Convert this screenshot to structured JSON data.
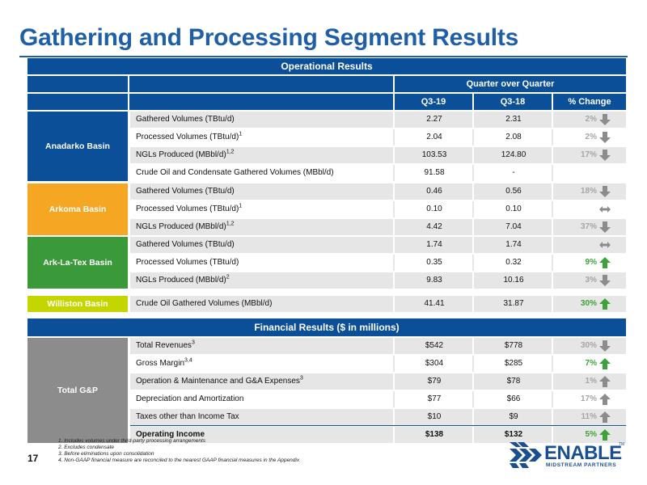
{
  "page": {
    "title": "Gathering and Processing Segment Results",
    "page_number": "17"
  },
  "operational": {
    "header": "Operational Results",
    "period_header": "Quarter over Quarter",
    "columns": [
      "Q3-19",
      "Q3-18",
      "% Change"
    ],
    "groups": [
      {
        "name": "Anadarko Basin",
        "color": "#0a4f98",
        "rows": [
          {
            "label": "Gathered Volumes (TBtu/d)",
            "sup": "",
            "q3_19": "2.27",
            "q3_18": "2.31",
            "change": "2%",
            "trend": "down"
          },
          {
            "label": "Processed Volumes (TBtu/d)",
            "sup": "1",
            "q3_19": "2.04",
            "q3_18": "2.08",
            "change": "2%",
            "trend": "down"
          },
          {
            "label": "NGLs Produced (MBbl/d)",
            "sup": "1,2",
            "q3_19": "103.53",
            "q3_18": "124.80",
            "change": "17%",
            "trend": "down"
          },
          {
            "label": "Crude Oil and Condensate Gathered Volumes (MBbl/d)",
            "sup": "",
            "q3_19": "91.58",
            "q3_18": "-",
            "change": "",
            "trend": "none"
          }
        ]
      },
      {
        "name": "Arkoma Basin",
        "color": "#f5a623",
        "rows": [
          {
            "label": "Gathered Volumes (TBtu/d)",
            "sup": "",
            "q3_19": "0.46",
            "q3_18": "0.56",
            "change": "18%",
            "trend": "down"
          },
          {
            "label": "Processed Volumes (TBtu/d)",
            "sup": "1",
            "q3_19": "0.10",
            "q3_18": "0.10",
            "change": "",
            "trend": "flat"
          },
          {
            "label": "NGLs Produced (MBbl/d)",
            "sup": "1,2",
            "q3_19": "4.42",
            "q3_18": "7.04",
            "change": "37%",
            "trend": "down"
          }
        ]
      },
      {
        "name": "Ark-La-Tex Basin",
        "color": "#3a9a3a",
        "rows": [
          {
            "label": "Gathered Volumes (TBtu/d)",
            "sup": "",
            "q3_19": "1.74",
            "q3_18": "1.74",
            "change": "",
            "trend": "flat"
          },
          {
            "label": "Processed Volumes (TBtu/d)",
            "sup": "",
            "q3_19": "0.35",
            "q3_18": "0.32",
            "change": "9%",
            "trend": "up"
          },
          {
            "label": "NGLs Produced (MBbl/d)",
            "sup": "2",
            "q3_19": "9.83",
            "q3_18": "10.16",
            "change": "3%",
            "trend": "down"
          }
        ]
      },
      {
        "name": "Williston Basin",
        "color": "#c4d600",
        "rows": [
          {
            "label": "Crude Oil Gathered Volumes (MBbl/d)",
            "sup": "",
            "q3_19": "41.41",
            "q3_18": "31.87",
            "change": "30%",
            "trend": "up"
          }
        ]
      }
    ]
  },
  "financial": {
    "header": "Financial Results ($ in millions)",
    "group": "Total G&P",
    "group_color": "#8c8c8c",
    "rows": [
      {
        "label": "Total Revenues",
        "sup": "3",
        "q3_19": "$542",
        "q3_18": "$778",
        "change": "30%",
        "trend": "down-gray"
      },
      {
        "label": "Gross Margin",
        "sup": "3,4",
        "q3_19": "$304",
        "q3_18": "$285",
        "change": "7%",
        "trend": "up-green"
      },
      {
        "label": "Operation & Maintenance and G&A Expenses",
        "sup": "3",
        "q3_19": "$79",
        "q3_18": "$78",
        "change": "1%",
        "trend": "up-gray"
      },
      {
        "label": "Depreciation and Amortization",
        "sup": "",
        "q3_19": "$77",
        "q3_18": "$66",
        "change": "17%",
        "trend": "up-gray"
      },
      {
        "label": "Taxes other than Income Tax",
        "sup": "",
        "q3_19": "$10",
        "q3_18": "$9",
        "change": "11%",
        "trend": "up-gray"
      },
      {
        "label": "Operating Income",
        "sup": "",
        "q3_19": "$138",
        "q3_18": "$132",
        "change": "5%",
        "trend": "up-green"
      }
    ]
  },
  "footnotes": [
    "1.  Includes volumes under third-party processing arrangements",
    "2.  Excludes condensate",
    "3.  Before eliminations upon consolidation",
    "4.  Non-GAAP financial measure are reconciled to the nearest GAAP financial measures in the Appendix"
  ],
  "logo": {
    "word": "ENABLE",
    "tm": "TM",
    "sub": "MIDSTREAM PARTNERS",
    "icon": "enable-chevron-logo-icon",
    "color": "#1a4f8f"
  },
  "colors": {
    "brand_blue": "#0a4f98",
    "title_blue": "#1f5fa8",
    "arrow_gray": "#8c8c8c",
    "arrow_green": "#3ea23a"
  }
}
